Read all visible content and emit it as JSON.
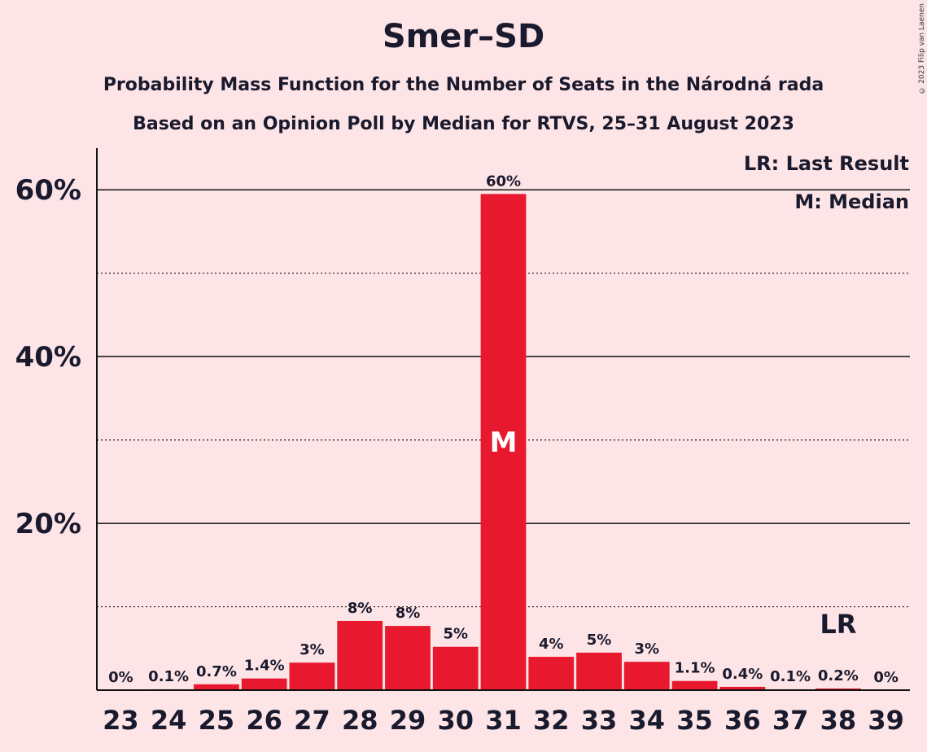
{
  "chart_data": {
    "type": "bar",
    "title": "Smer–SD",
    "subtitle_lines": [
      "Probability Mass Function for the Number of Seats in the Národná rada",
      "Based on an Opinion Poll by Median for RTVS, 25–31 August 2023"
    ],
    "categories": [
      "23",
      "24",
      "25",
      "26",
      "27",
      "28",
      "29",
      "30",
      "31",
      "32",
      "33",
      "34",
      "35",
      "36",
      "37",
      "38",
      "39"
    ],
    "values": [
      0.0,
      0.1,
      0.7,
      1.4,
      3.3,
      8.3,
      7.7,
      5.2,
      59.5,
      4.0,
      4.5,
      3.4,
      1.1,
      0.4,
      0.1,
      0.2,
      0.0
    ],
    "labels": [
      "0%",
      "0.1%",
      "0.7%",
      "1.4%",
      "3%",
      "8%",
      "8%",
      "5%",
      "60%",
      "4%",
      "5%",
      "3%",
      "1.1%",
      "0.4%",
      "0.1%",
      "0.2%",
      "0%"
    ],
    "ylim": [
      0,
      65
    ],
    "yticks": [
      {
        "value": 20,
        "label": "20%"
      },
      {
        "value": 40,
        "label": "40%"
      },
      {
        "value": 60,
        "label": "60%"
      }
    ],
    "minor_gridlines": [
      10,
      30,
      50
    ],
    "bar_color": "#e8192f",
    "background": "#fde4e6",
    "median_seat": "31",
    "median_marker": "M",
    "last_result_seat": "38",
    "last_result_marker": "LR",
    "legend": [
      "LR: Last Result",
      "M: Median"
    ],
    "legend_position": "top-right"
  },
  "copyright": "© 2023 Filip van Laenen"
}
